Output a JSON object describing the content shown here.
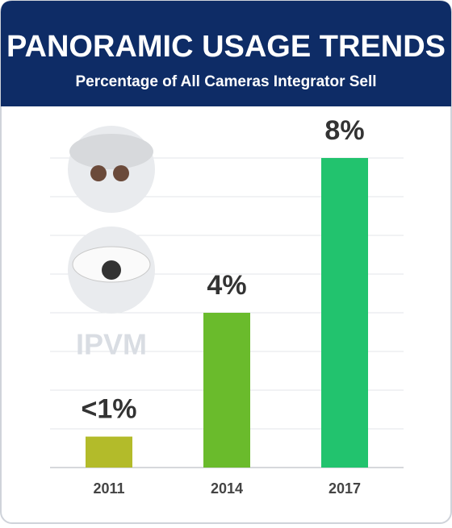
{
  "chart_data": {
    "type": "bar",
    "title": "PANORAMIC USAGE TRENDS",
    "subtitle": "Percentage of All Cameras Integrator Sell",
    "watermark": "IPVM",
    "categories": [
      "2011",
      "2014",
      "2017"
    ],
    "values": [
      0.8,
      4,
      8
    ],
    "value_labels": [
      "<1%",
      "4%",
      "8%"
    ],
    "colors": [
      "#b3bb2a",
      "#6abb2c",
      "#22c36e"
    ],
    "ylim": [
      0,
      8
    ],
    "grid": true
  }
}
